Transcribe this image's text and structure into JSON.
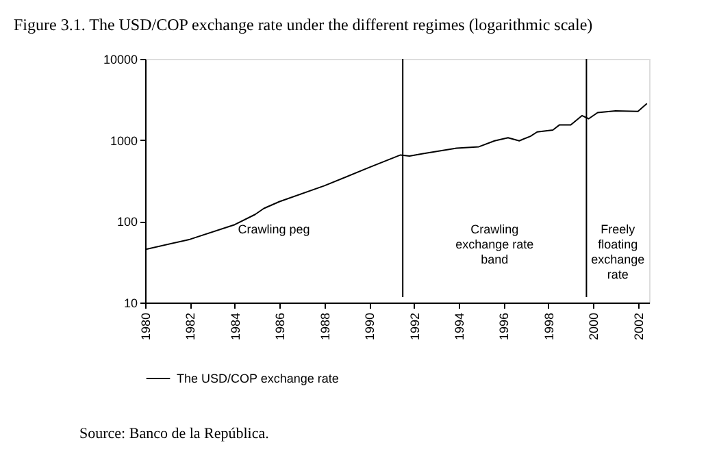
{
  "chart_data": {
    "type": "line",
    "title": "Figure 3.1. The USD/COP exchange rate under the different regimes (logarithmic scale)",
    "x": [
      1980,
      1982,
      1984,
      1984.9,
      1985.3,
      1986,
      1988,
      1990,
      1991.4,
      1991.8,
      1992.4,
      1993.9,
      1994.9,
      1995.6,
      1996.2,
      1996.7,
      1997.2,
      1997.5,
      1998.2,
      1998.5,
      1999.0,
      1999.5,
      1999.8,
      2000.2,
      2001.0,
      2002.0,
      2002.4
    ],
    "series": [
      {
        "name": "The USD/COP exchange rate",
        "color": "#000000",
        "values": [
          45,
          60,
          91,
          121,
          144,
          175,
          274,
          460,
          656,
          637,
          680,
          795,
          828,
          980,
          1070,
          980,
          1115,
          1260,
          1330,
          1540,
          1540,
          2000,
          1830,
          2180,
          2290,
          2260,
          2820
        ]
      }
    ],
    "log": "y",
    "xlim": [
      1980,
      2002.5
    ],
    "xticks": [
      1980,
      1982,
      1984,
      1986,
      1988,
      1990,
      1992,
      1994,
      1996,
      1998,
      2000,
      2002
    ],
    "ylim": [
      10,
      10000
    ],
    "yticks": [
      10,
      100,
      1000,
      10000
    ],
    "grid": false,
    "legend": "bottom",
    "marker": "none",
    "line_style": "solid",
    "ref_lines": [
      {
        "axis": "x",
        "value": 1991.5,
        "color": "#000000"
      },
      {
        "axis": "x",
        "value": 1999.7,
        "color": "#000000"
      }
    ],
    "annotations": [
      "Crawling peg",
      "Crawling\nexchange rate\nband",
      "Freely\nfloating\nexchange\nrate",
      "Source: Banco de la República."
    ]
  }
}
